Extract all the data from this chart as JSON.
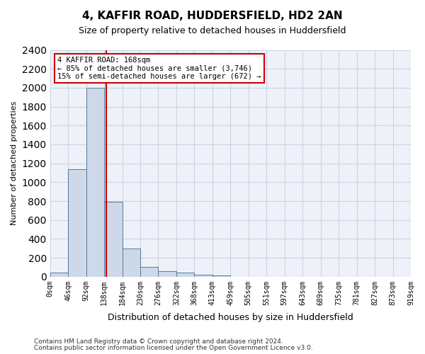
{
  "title": "4, KAFFIR ROAD, HUDDERSFIELD, HD2 2AN",
  "subtitle": "Size of property relative to detached houses in Huddersfield",
  "xlabel": "Distribution of detached houses by size in Huddersfield",
  "ylabel": "Number of detached properties",
  "footnote1": "Contains HM Land Registry data © Crown copyright and database right 2024.",
  "footnote2": "Contains public sector information licensed under the Open Government Licence v3.0.",
  "bin_labels": [
    "0sqm",
    "46sqm",
    "92sqm",
    "138sqm",
    "184sqm",
    "230sqm",
    "276sqm",
    "322sqm",
    "368sqm",
    "413sqm",
    "459sqm",
    "505sqm",
    "551sqm",
    "597sqm",
    "643sqm",
    "689sqm",
    "735sqm",
    "781sqm",
    "827sqm",
    "873sqm",
    "919sqm"
  ],
  "bar_values": [
    40,
    1140,
    2000,
    790,
    295,
    100,
    55,
    40,
    20,
    10,
    0,
    0,
    0,
    0,
    0,
    0,
    0,
    0,
    0,
    0
  ],
  "bar_color": "#cdd9e8",
  "bar_edge_color": "#5878a0",
  "grid_color": "#c8d4e8",
  "background_color": "#eef2f8",
  "vline_x": 2.62,
  "vline_color": "#cc0000",
  "annotation_text": "4 KAFFIR ROAD: 168sqm\n← 85% of detached houses are smaller (3,746)\n15% of semi-detached houses are larger (672) →",
  "annotation_box_color": "#cc0000",
  "ylim": [
    0,
    2400
  ],
  "yticks": [
    0,
    200,
    400,
    600,
    800,
    1000,
    1200,
    1400,
    1600,
    1800,
    2000,
    2200,
    2400
  ]
}
